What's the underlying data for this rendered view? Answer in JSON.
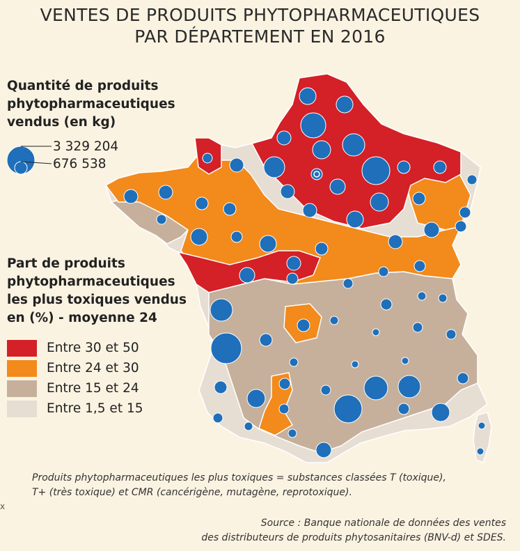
{
  "title": {
    "line1": "VENTES DE PRODUITS PHYTOPHARMACEUTIQUES",
    "line2": "PAR DÉPARTEMENT EN 2016"
  },
  "quantity_legend": {
    "title_line1": "Quantité de produits",
    "title_line2": "phytopharmaceutiques",
    "title_line3": "vendus (en kg)",
    "max_label": "3 329 204",
    "min_label": "676 538",
    "bubble_color": "#1f6fba"
  },
  "share_legend": {
    "title_line1": "Part de produits",
    "title_line2": "phytopharmaceutiques",
    "title_line3": "les plus toxiques vendus",
    "title_line4": "en (%) - moyenne 24",
    "classes": [
      {
        "label": "Entre 30 et 50",
        "color": "#d42027"
      },
      {
        "label": "Entre 24 et 30",
        "color": "#f28a1c"
      },
      {
        "label": "Entre 15 et 24",
        "color": "#c6b09b"
      },
      {
        "label": "Entre 1,5 et 15",
        "color": "#e6ddd3"
      }
    ]
  },
  "note": {
    "line1": "Produits phytopharmaceutiques les plus toxiques = substances classées T (toxique),",
    "line2": "T+ (très toxique) et CMR (cancérigène, mutagène, reprotoxique)."
  },
  "source": {
    "line1": "Source : Banque nationale de données des ventes",
    "line2": "des distributeurs de produits phytosanitaires (BNV-d) et SDES."
  },
  "corner_mark": "x"
}
